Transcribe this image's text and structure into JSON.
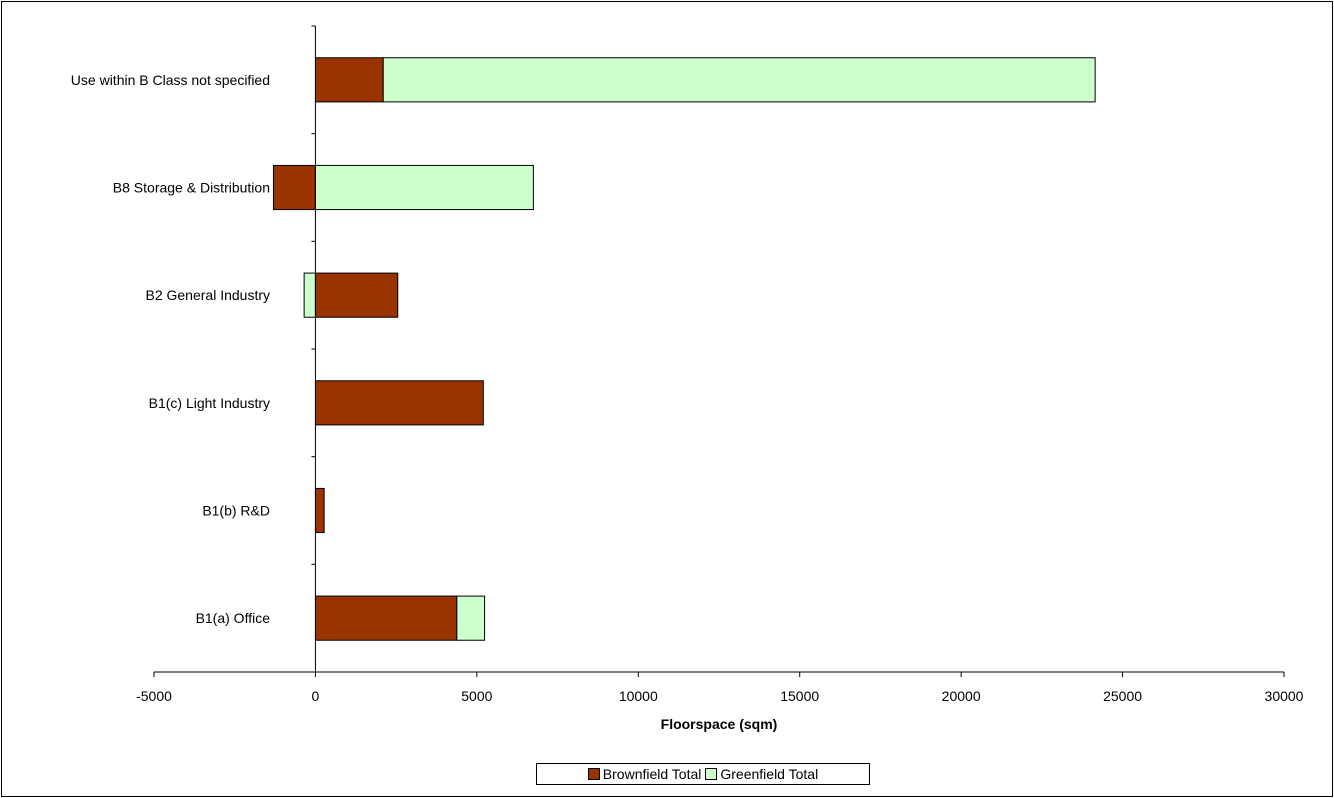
{
  "chart_data": {
    "type": "bar",
    "orientation": "horizontal",
    "stacked": true,
    "categories": [
      "Use within B Class not specified",
      "B8 Storage & Distribution",
      "B2 General Industry",
      "B1(c) Light Industry",
      "B1(b) R&D",
      "B1(a) Office"
    ],
    "series": [
      {
        "name": "Brownfield Total",
        "color": "#993300",
        "values": [
          2100,
          -1300,
          2550,
          5200,
          270,
          4380
        ]
      },
      {
        "name": "Greenfield Total",
        "color": "#ccffcc",
        "values": [
          22050,
          6750,
          -350,
          0,
          0,
          860
        ]
      }
    ],
    "xlabel": "Floorspace (sqm)",
    "xlim": [
      -5000,
      30000
    ],
    "xticks": [
      "-5000",
      "0",
      "5000",
      "10000",
      "15000",
      "20000",
      "25000",
      "30000"
    ],
    "xtick_values": [
      -5000,
      0,
      5000,
      10000,
      15000,
      20000,
      25000,
      30000
    ],
    "grid": false,
    "legend_position": "bottom"
  }
}
